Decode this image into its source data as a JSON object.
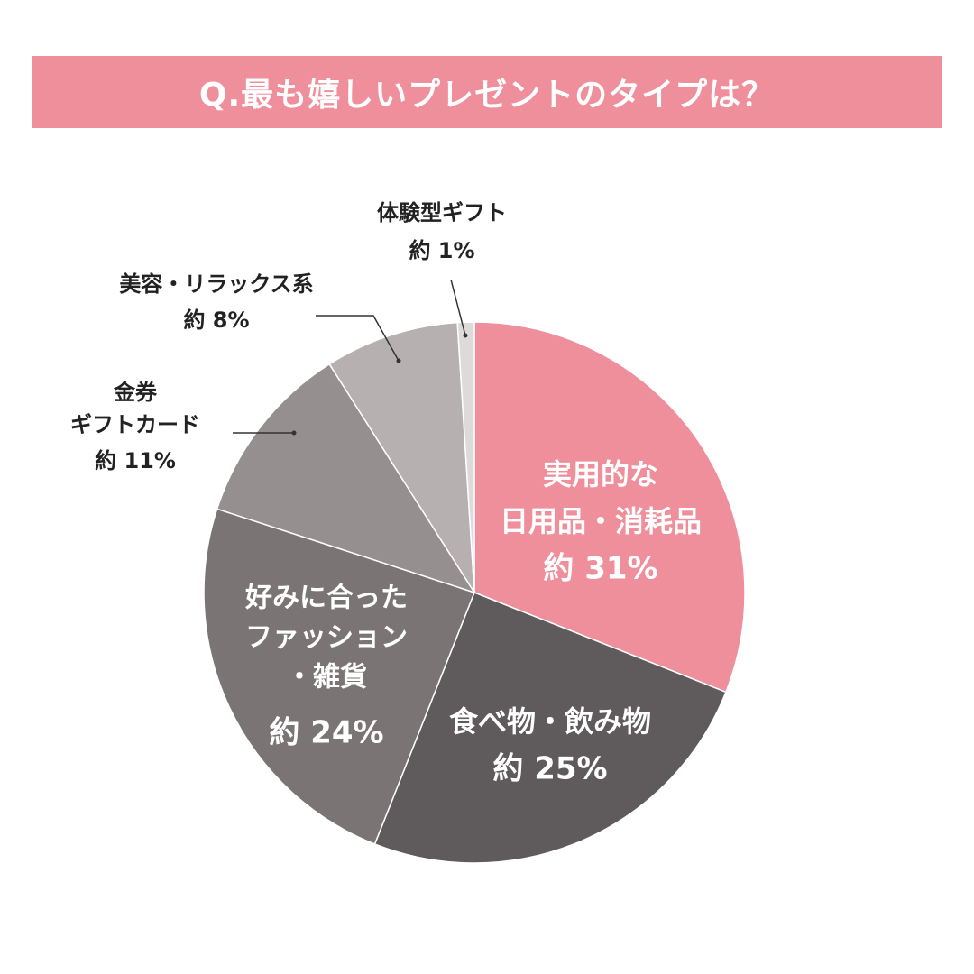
{
  "title": "Q.最も嬉しいプレゼントのタイプは？",
  "colors": {
    "banner": "#ee8f9b",
    "banner_text": "#ffffff",
    "outside_text": "#222222",
    "leader_line": "#333333"
  },
  "chart_data": {
    "type": "pie",
    "title": "Q.最も嬉しいプレゼントのタイプは？",
    "start": "12 o'clock",
    "direction": "clockwise",
    "slices": [
      {
        "label_lines": [
          "実用的な",
          "日用品・消耗品"
        ],
        "value_label": "約 31%",
        "value": 31,
        "color": "#ee8f9b",
        "label_position": "inside",
        "label_color": "#ffffff"
      },
      {
        "label_lines": [
          "食べ物・飲み物"
        ],
        "value_label": "約 25%",
        "value": 25,
        "color": "#5f5a5b",
        "label_position": "inside",
        "label_color": "#ffffff"
      },
      {
        "label_lines": [
          "好みに合った",
          "ファッション",
          "・雑貨"
        ],
        "value_label": "約 24%",
        "value": 24,
        "color": "#7a7475",
        "label_position": "inside",
        "label_color": "#ffffff"
      },
      {
        "label_lines": [
          "金券",
          "ギフトカード"
        ],
        "value_label": "約 11%",
        "value": 11,
        "color": "#968f90",
        "label_position": "outside",
        "label_color": "#222222"
      },
      {
        "label_lines": [
          "美容・リラックス系"
        ],
        "value_label": "約 8%",
        "value": 8,
        "color": "#b6b0b1",
        "label_position": "outside",
        "label_color": "#222222"
      },
      {
        "label_lines": [
          "体験型ギフト"
        ],
        "value_label": "約 1%",
        "value": 1,
        "color": "#dedada",
        "label_position": "outside",
        "label_color": "#222222"
      }
    ]
  }
}
